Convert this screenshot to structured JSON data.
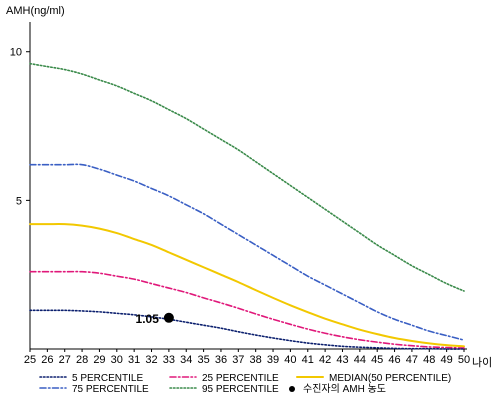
{
  "chart_data": {
    "type": "line",
    "ylabel": "AMH(ng/ml)",
    "xlabel": "나이",
    "x": [
      25,
      26,
      27,
      28,
      29,
      30,
      31,
      32,
      33,
      34,
      35,
      36,
      37,
      38,
      39,
      40,
      41,
      42,
      43,
      44,
      45,
      46,
      47,
      48,
      49,
      50
    ],
    "x_tick_labels": [
      "25",
      "26",
      "27",
      "28",
      "29",
      "30",
      "31",
      "32",
      "33",
      "34",
      "35",
      "36",
      "37",
      "38",
      "39",
      "40",
      "41",
      "42",
      "43",
      "44",
      "45",
      "46",
      "47",
      "48",
      "49",
      "50"
    ],
    "xlim": [
      25,
      50
    ],
    "ylim": [
      0,
      11
    ],
    "y_ticks": [
      5,
      10
    ],
    "y_tick_labels": [
      "5",
      "10"
    ],
    "grid": false,
    "legend_position": "bottom",
    "series": [
      {
        "name": "95 PERCENTILE",
        "color": "#3a8a4a",
        "dash": "dotted",
        "values": [
          9.6,
          9.5,
          9.4,
          9.25,
          9.05,
          8.85,
          8.6,
          8.35,
          8.05,
          7.75,
          7.4,
          7.05,
          6.7,
          6.3,
          5.9,
          5.5,
          5.1,
          4.7,
          4.3,
          3.9,
          3.5,
          3.15,
          2.8,
          2.5,
          2.2,
          1.95
        ]
      },
      {
        "name": "75 PERCENTILE",
        "color": "#3a5fc4",
        "dash": "dashdot",
        "values": [
          6.2,
          6.2,
          6.2,
          6.2,
          6.05,
          5.85,
          5.65,
          5.4,
          5.15,
          4.85,
          4.55,
          4.2,
          3.85,
          3.5,
          3.15,
          2.8,
          2.45,
          2.15,
          1.85,
          1.55,
          1.25,
          1.0,
          0.8,
          0.6,
          0.45,
          0.3
        ]
      },
      {
        "name": "MEDIAN(50 PERCENTILE)",
        "color": "#f2c800",
        "dash": "solid",
        "values": [
          4.2,
          4.2,
          4.2,
          4.15,
          4.05,
          3.9,
          3.7,
          3.5,
          3.25,
          3.0,
          2.75,
          2.5,
          2.25,
          1.98,
          1.72,
          1.47,
          1.24,
          1.02,
          0.83,
          0.65,
          0.5,
          0.37,
          0.27,
          0.19,
          0.13,
          0.09
        ]
      },
      {
        "name": "25 PERCENTILE",
        "color": "#e0187a",
        "dash": "dashdot",
        "values": [
          2.6,
          2.6,
          2.6,
          2.6,
          2.55,
          2.45,
          2.35,
          2.2,
          2.05,
          1.9,
          1.72,
          1.55,
          1.37,
          1.18,
          1.0,
          0.83,
          0.67,
          0.53,
          0.41,
          0.31,
          0.23,
          0.16,
          0.11,
          0.07,
          0.05,
          0.03
        ]
      },
      {
        "name": "5 PERCENTILE",
        "color": "#0b1f6e",
        "dash": "dotted",
        "values": [
          1.3,
          1.3,
          1.3,
          1.28,
          1.25,
          1.2,
          1.15,
          1.08,
          1.0,
          0.9,
          0.8,
          0.7,
          0.58,
          0.47,
          0.37,
          0.28,
          0.2,
          0.14,
          0.09,
          0.06,
          0.04,
          0.02,
          0.01,
          0.01,
          0.0,
          0.0
        ]
      }
    ],
    "point": {
      "name": "수진자의 AMH 농도",
      "x": 33,
      "y": 1.05,
      "label": "1.05",
      "color": "#000000"
    },
    "legend": [
      {
        "label": "5 PERCENTILE",
        "series": 4
      },
      {
        "label": "25 PERCENTILE",
        "series": 3
      },
      {
        "label": "MEDIAN(50 PERCENTILE)",
        "series": 2
      },
      {
        "label": "75 PERCENTILE",
        "series": 1
      },
      {
        "label": "95 PERCENTILE",
        "series": 0
      },
      {
        "label": "수진자의 AMH 농도",
        "marker": "point"
      }
    ]
  }
}
